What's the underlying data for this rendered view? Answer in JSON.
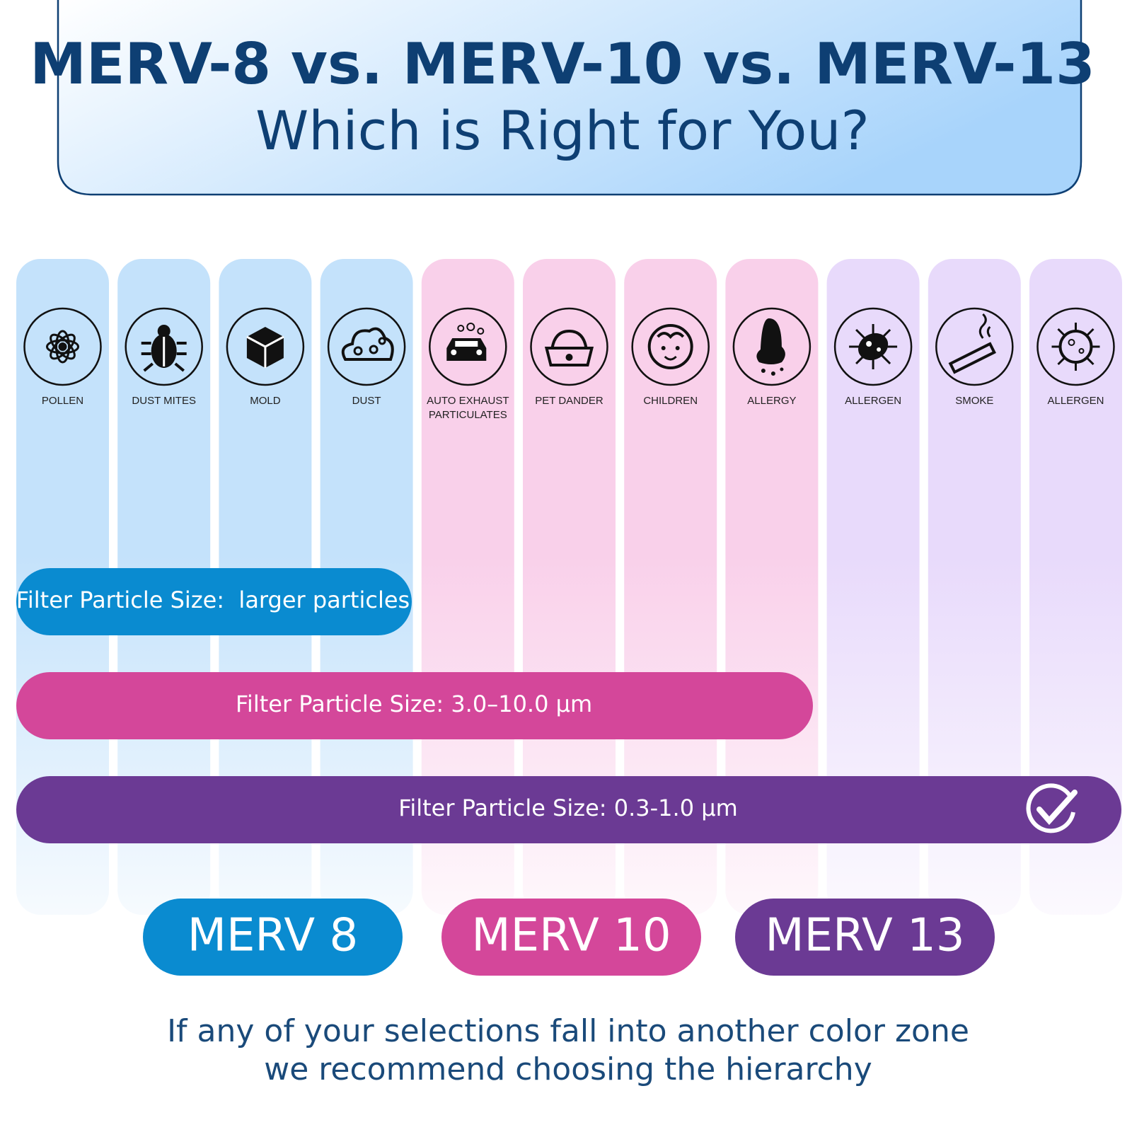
{
  "header": {
    "title": "MERV-8 vs. MERV-10 vs. MERV-13",
    "subtitle": "Which is Right for You?"
  },
  "columns": [
    [
      "POLLEN"
    ],
    [
      "DUST MITES"
    ],
    [
      "MOLD"
    ],
    [
      "DUST"
    ],
    [
      "AUTO EXHAUST",
      "PARTICULATES"
    ],
    [
      "PET DANDER"
    ],
    [
      "CHILDREN"
    ],
    [
      "ALLERGY"
    ],
    [
      "ALLERGEN"
    ],
    [
      "SMOKE"
    ],
    [
      "ALLERGEN"
    ]
  ],
  "bars": [
    "Filter Particle Size:  larger particles",
    "Filter Particle Size: 3.0–10.0 µm",
    "Filter Particle Size: 0.3-1.0 µm"
  ],
  "buttons": [
    "MERV 8",
    "MERV 10",
    "MERV 13"
  ],
  "footer": [
    "If any of your selections fall into another color zone",
    "we recommend choosing the hierarchy"
  ]
}
